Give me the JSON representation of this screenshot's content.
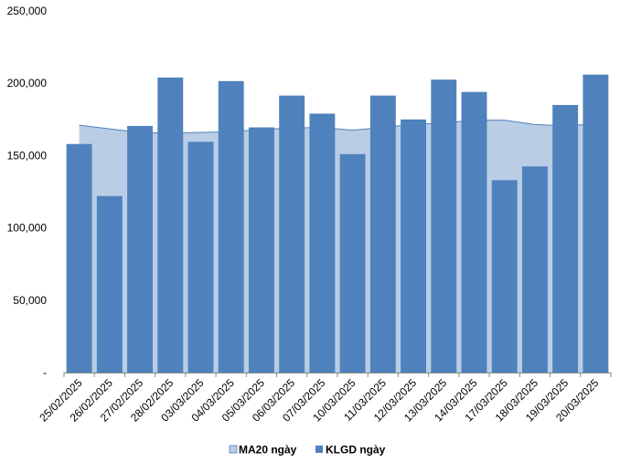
{
  "chart_data": {
    "type": "bar",
    "categories": [
      "25/02/2025",
      "26/02/2025",
      "27/02/2025",
      "28/02/2025",
      "03/03/2025",
      "04/03/2025",
      "05/03/2025",
      "06/03/2025",
      "07/03/2025",
      "10/03/2025",
      "11/03/2025",
      "12/03/2025",
      "13/03/2025",
      "14/03/2025",
      "17/03/2025",
      "18/03/2025",
      "19/03/2025",
      "20/03/2025"
    ],
    "series": [
      {
        "name": "MA20 ngày",
        "type": "area",
        "color": "#b9cde5",
        "stroke": "#4f81bd",
        "values": [
          171000,
          168500,
          166000,
          165500,
          166000,
          166500,
          168000,
          169000,
          169500,
          167500,
          169500,
          171500,
          172500,
          174500,
          174500,
          171500,
          170500,
          172000
        ]
      },
      {
        "name": "KLGD ngày",
        "type": "bar",
        "color": "#4f81bd",
        "values": [
          158000,
          122000,
          170500,
          204000,
          159500,
          201500,
          169500,
          191500,
          179000,
          151000,
          191500,
          175000,
          202500,
          194000,
          133000,
          142500,
          185000,
          206000
        ]
      }
    ],
    "y_ticks": [
      "-",
      "50,000",
      "100,000",
      "150,000",
      "200,000",
      "250,000"
    ],
    "ylim": [
      0,
      250000
    ],
    "y_step": 50000,
    "grid": false,
    "legend_position": "bottom"
  }
}
